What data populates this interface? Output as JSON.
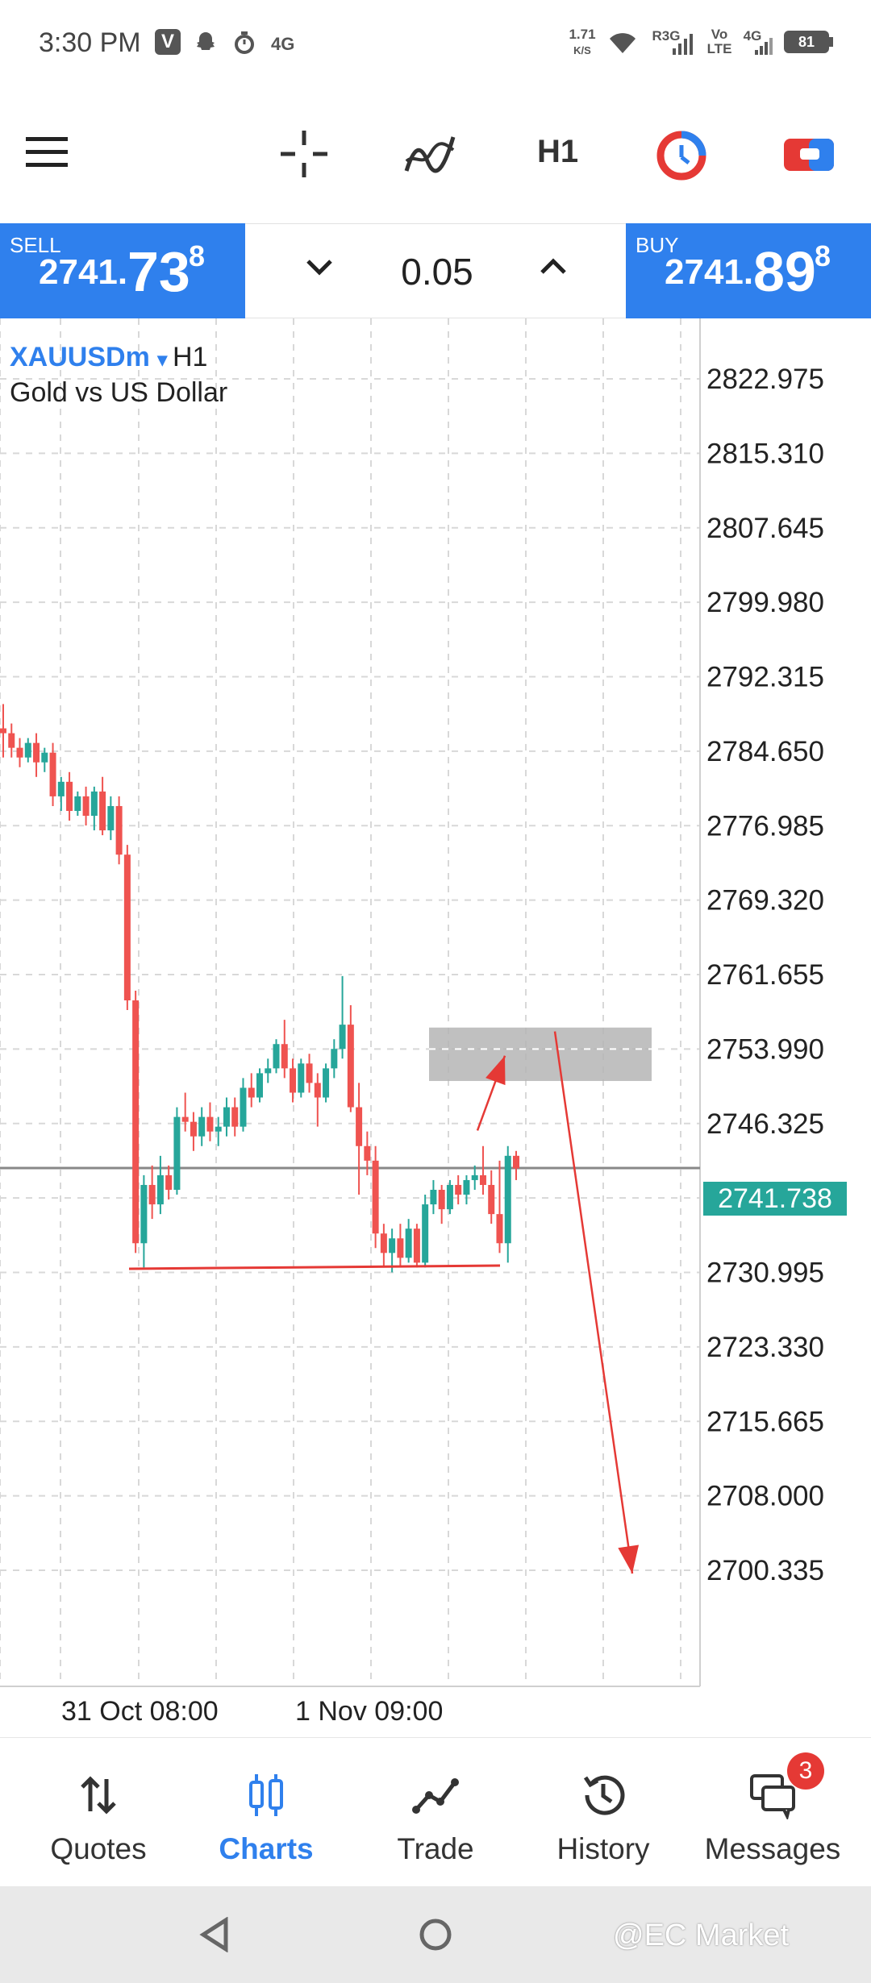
{
  "status_bar": {
    "time": "3:30 PM",
    "net_speed_value": "1.71",
    "net_speed_unit": "K/S",
    "network_1": "R3G",
    "network_2_top": "Vo",
    "network_2_bottom": "LTE",
    "network_3": "4G",
    "network_left": "4G",
    "battery": "81"
  },
  "toolbar": {
    "timeframe": "H1"
  },
  "trade": {
    "sell_label": "SELL",
    "sell_price_main": "2741.",
    "sell_price_big": "73",
    "sell_price_sup": "8",
    "buy_label": "BUY",
    "buy_price_main": "2741.",
    "buy_price_big": "89",
    "buy_price_sup": "8",
    "lot": "0.05"
  },
  "chart": {
    "symbol": "XAUUSDm",
    "symbol_arrow": "▾",
    "timeframe": "H1",
    "description": "Gold vs US Dollar",
    "current_price": "2741.738"
  },
  "chart_data": {
    "type": "candlestick",
    "y_ticks": [
      "2822.975",
      "2815.310",
      "2807.645",
      "2799.980",
      "2792.315",
      "2784.650",
      "2776.985",
      "2769.320",
      "2761.655",
      "2753.990",
      "2746.325",
      "2738.660",
      "2730.995",
      "2723.330",
      "2715.665",
      "2708.000",
      "2700.335"
    ],
    "x_ticks": [
      "31 Oct 08:00",
      "1 Nov 09:00"
    ],
    "ylim": [
      2695.0,
      2828.0
    ],
    "current_price": 2741.738,
    "candles": [
      {
        "o": 2787.0,
        "h": 2789.5,
        "l": 2784.0,
        "c": 2786.5
      },
      {
        "o": 2786.5,
        "h": 2787.5,
        "l": 2784.0,
        "c": 2785.0
      },
      {
        "o": 2785.0,
        "h": 2786.0,
        "l": 2783.0,
        "c": 2784.0
      },
      {
        "o": 2784.0,
        "h": 2786.0,
        "l": 2783.5,
        "c": 2785.5
      },
      {
        "o": 2785.5,
        "h": 2786.5,
        "l": 2782.0,
        "c": 2783.5
      },
      {
        "o": 2783.5,
        "h": 2785.0,
        "l": 2782.5,
        "c": 2784.5
      },
      {
        "o": 2784.5,
        "h": 2785.5,
        "l": 2779.0,
        "c": 2780.0
      },
      {
        "o": 2780.0,
        "h": 2782.0,
        "l": 2778.5,
        "c": 2781.5
      },
      {
        "o": 2781.5,
        "h": 2782.5,
        "l": 2777.5,
        "c": 2778.5
      },
      {
        "o": 2778.5,
        "h": 2780.5,
        "l": 2778.0,
        "c": 2780.0
      },
      {
        "o": 2780.0,
        "h": 2781.0,
        "l": 2777.0,
        "c": 2778.0
      },
      {
        "o": 2778.0,
        "h": 2781.0,
        "l": 2776.5,
        "c": 2780.5
      },
      {
        "o": 2780.5,
        "h": 2782.0,
        "l": 2776.0,
        "c": 2776.5
      },
      {
        "o": 2776.5,
        "h": 2780.0,
        "l": 2775.5,
        "c": 2779.0
      },
      {
        "o": 2779.0,
        "h": 2780.0,
        "l": 2773.0,
        "c": 2774.0
      },
      {
        "o": 2774.0,
        "h": 2775.0,
        "l": 2758.0,
        "c": 2759.0
      },
      {
        "o": 2759.0,
        "h": 2760.0,
        "l": 2733.0,
        "c": 2734.0
      },
      {
        "o": 2734.0,
        "h": 2741.0,
        "l": 2731.5,
        "c": 2740.0
      },
      {
        "o": 2740.0,
        "h": 2742.0,
        "l": 2736.5,
        "c": 2738.0
      },
      {
        "o": 2738.0,
        "h": 2743.0,
        "l": 2737.0,
        "c": 2741.0
      },
      {
        "o": 2741.0,
        "h": 2742.0,
        "l": 2738.5,
        "c": 2739.5
      },
      {
        "o": 2739.5,
        "h": 2748.0,
        "l": 2739.0,
        "c": 2747.0
      },
      {
        "o": 2747.0,
        "h": 2749.5,
        "l": 2745.5,
        "c": 2746.5
      },
      {
        "o": 2746.5,
        "h": 2747.5,
        "l": 2743.5,
        "c": 2745.0
      },
      {
        "o": 2745.0,
        "h": 2748.0,
        "l": 2744.0,
        "c": 2747.0
      },
      {
        "o": 2747.0,
        "h": 2748.5,
        "l": 2744.5,
        "c": 2745.5
      },
      {
        "o": 2745.5,
        "h": 2747.0,
        "l": 2744.0,
        "c": 2746.0
      },
      {
        "o": 2746.0,
        "h": 2749.0,
        "l": 2745.0,
        "c": 2748.0
      },
      {
        "o": 2748.0,
        "h": 2749.0,
        "l": 2745.0,
        "c": 2746.0
      },
      {
        "o": 2746.0,
        "h": 2751.0,
        "l": 2745.5,
        "c": 2750.0
      },
      {
        "o": 2750.0,
        "h": 2751.5,
        "l": 2748.0,
        "c": 2749.0
      },
      {
        "o": 2749.0,
        "h": 2752.0,
        "l": 2748.5,
        "c": 2751.5
      },
      {
        "o": 2751.5,
        "h": 2753.0,
        "l": 2750.5,
        "c": 2752.0
      },
      {
        "o": 2752.0,
        "h": 2755.0,
        "l": 2751.5,
        "c": 2754.5
      },
      {
        "o": 2754.5,
        "h": 2757.0,
        "l": 2751.0,
        "c": 2752.0
      },
      {
        "o": 2752.0,
        "h": 2753.0,
        "l": 2748.5,
        "c": 2749.5
      },
      {
        "o": 2749.5,
        "h": 2753.0,
        "l": 2749.0,
        "c": 2752.5
      },
      {
        "o": 2752.5,
        "h": 2753.5,
        "l": 2749.5,
        "c": 2750.5
      },
      {
        "o": 2750.5,
        "h": 2751.5,
        "l": 2746.0,
        "c": 2749.0
      },
      {
        "o": 2749.0,
        "h": 2752.5,
        "l": 2748.5,
        "c": 2752.0
      },
      {
        "o": 2752.0,
        "h": 2755.0,
        "l": 2751.0,
        "c": 2754.0
      },
      {
        "o": 2754.0,
        "h": 2761.5,
        "l": 2753.0,
        "c": 2756.5
      },
      {
        "o": 2756.5,
        "h": 2758.5,
        "l": 2747.5,
        "c": 2748.0
      },
      {
        "o": 2748.0,
        "h": 2750.5,
        "l": 2739.0,
        "c": 2744.0
      },
      {
        "o": 2744.0,
        "h": 2745.5,
        "l": 2741.0,
        "c": 2742.5
      },
      {
        "o": 2742.5,
        "h": 2744.0,
        "l": 2733.5,
        "c": 2735.0
      },
      {
        "o": 2735.0,
        "h": 2736.0,
        "l": 2731.5,
        "c": 2733.0
      },
      {
        "o": 2733.0,
        "h": 2735.5,
        "l": 2731.0,
        "c": 2734.5
      },
      {
        "o": 2734.5,
        "h": 2736.0,
        "l": 2731.5,
        "c": 2732.5
      },
      {
        "o": 2732.5,
        "h": 2736.5,
        "l": 2732.0,
        "c": 2735.5
      },
      {
        "o": 2735.5,
        "h": 2736.0,
        "l": 2731.5,
        "c": 2732.0
      },
      {
        "o": 2732.0,
        "h": 2739.0,
        "l": 2731.5,
        "c": 2738.0
      },
      {
        "o": 2738.0,
        "h": 2740.5,
        "l": 2737.0,
        "c": 2739.5
      },
      {
        "o": 2739.5,
        "h": 2740.0,
        "l": 2736.0,
        "c": 2737.5
      },
      {
        "o": 2737.5,
        "h": 2740.5,
        "l": 2737.0,
        "c": 2740.0
      },
      {
        "o": 2740.0,
        "h": 2741.0,
        "l": 2738.0,
        "c": 2739.0
      },
      {
        "o": 2739.0,
        "h": 2741.0,
        "l": 2738.0,
        "c": 2740.5
      },
      {
        "o": 2740.5,
        "h": 2742.0,
        "l": 2739.5,
        "c": 2741.0
      },
      {
        "o": 2741.0,
        "h": 2744.0,
        "l": 2739.0,
        "c": 2740.0
      },
      {
        "o": 2740.0,
        "h": 2741.5,
        "l": 2736.0,
        "c": 2737.0
      },
      {
        "o": 2737.0,
        "h": 2742.5,
        "l": 2733.0,
        "c": 2734.0
      },
      {
        "o": 2734.0,
        "h": 2744.0,
        "l": 2732.0,
        "c": 2743.0
      },
      {
        "o": 2743.0,
        "h": 2743.5,
        "l": 2740.5,
        "c": 2741.7
      }
    ]
  },
  "annotations": {
    "support_level": 2731.7,
    "zone_top": 2756.2,
    "zone_bottom": 2750.7,
    "zone_mid": 2753.99,
    "target_level": 2700.0
  },
  "colors": {
    "bull": "#26a69a",
    "bear": "#ef5350",
    "accent": "#2f80ed",
    "annotation": "#e53935",
    "zone": "#b5b5b5",
    "price_line": "#888888"
  },
  "bottom_nav": {
    "items": [
      {
        "label": "Quotes",
        "icon": "quotes-arrows-icon"
      },
      {
        "label": "Charts",
        "icon": "candles-icon"
      },
      {
        "label": "Trade",
        "icon": "trade-line-icon"
      },
      {
        "label": "History",
        "icon": "history-clock-icon"
      },
      {
        "label": "Messages",
        "icon": "chat-bubbles-icon"
      }
    ],
    "messages_badge": "3"
  },
  "system_nav": {
    "watermark": "@EC Market"
  }
}
